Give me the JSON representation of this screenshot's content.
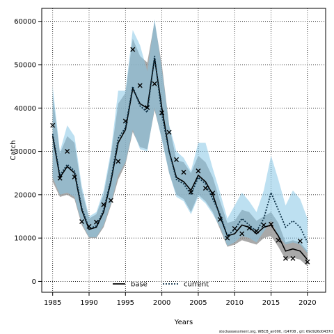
{
  "chart_data": {
    "type": "line",
    "xlabel": "Years",
    "ylabel": "Catch",
    "xlim": [
      1983.5,
      2022.5
    ],
    "ylim": [
      -2500,
      63000
    ],
    "xticks": [
      1985,
      1990,
      1995,
      2000,
      2005,
      2010,
      2015,
      2020
    ],
    "yticks": [
      0,
      10000,
      20000,
      30000,
      40000,
      50000,
      60000
    ],
    "grid": "dotted",
    "legend_position": "bottom-center",
    "footnote": "stockassessment.org, WBCB_an00lt, r14708 , git: 69d926d0437d",
    "colors": {
      "base": "#000000",
      "base_band": "#8c8c8c",
      "current": "#1a6e9a",
      "current_band": "#86c6e6",
      "points": "#000000"
    },
    "x": [
      1985,
      1986,
      1987,
      1988,
      1989,
      1990,
      1991,
      1992,
      1993,
      1994,
      1995,
      1996,
      1997,
      1998,
      1999,
      2000,
      2001,
      2002,
      2003,
      2004,
      2005,
      2006,
      2007,
      2008,
      2009,
      2010,
      2011,
      2012,
      2013,
      2014,
      2015,
      2016,
      2017,
      2018,
      2019,
      2020
    ],
    "series": [
      {
        "name": "base",
        "style": "solid",
        "values": [
          33500,
          24000,
          26500,
          25000,
          16500,
          12000,
          12500,
          16000,
          23000,
          32000,
          35000,
          44500,
          41000,
          40000,
          51500,
          40000,
          30000,
          24000,
          23000,
          21000,
          24500,
          23000,
          20000,
          15000,
          10500,
          11000,
          13000,
          12500,
          11000,
          12500,
          13000,
          10500,
          7000,
          7500,
          7000,
          5000
        ],
        "lower": [
          23000,
          19500,
          20000,
          19000,
          13000,
          10000,
          10000,
          12500,
          17500,
          23500,
          27000,
          34500,
          31000,
          30500,
          39500,
          33000,
          25000,
          20000,
          19000,
          16000,
          20000,
          18500,
          16000,
          12000,
          8000,
          8500,
          9500,
          9000,
          8500,
          10000,
          10500,
          8000,
          5000,
          5500,
          5000,
          3500
        ],
        "upper": [
          43000,
          29500,
          33500,
          32000,
          21000,
          14500,
          15500,
          20000,
          29000,
          41000,
          43500,
          56000,
          52000,
          50500,
          60000,
          50000,
          36000,
          28000,
          27500,
          25000,
          29000,
          27500,
          24000,
          18500,
          13500,
          14000,
          16500,
          16000,
          14000,
          15000,
          16000,
          13500,
          9000,
          9500,
          9000,
          7000
        ]
      },
      {
        "name": "current",
        "style": "dotted",
        "values": [
          34000,
          24500,
          27000,
          25500,
          17000,
          12200,
          12800,
          16500,
          23500,
          33000,
          35500,
          45000,
          40500,
          39000,
          52000,
          38500,
          30000,
          23500,
          22500,
          20000,
          24000,
          22500,
          19000,
          15500,
          10500,
          12000,
          14500,
          13000,
          11500,
          14500,
          20500,
          16500,
          12500,
          14000,
          12500,
          9000
        ],
        "lower": [
          24000,
          20000,
          20500,
          19500,
          13500,
          10200,
          10200,
          13000,
          18000,
          24500,
          27500,
          35000,
          30500,
          30000,
          40000,
          32500,
          25000,
          19500,
          18500,
          15500,
          19500,
          18000,
          15500,
          12500,
          8200,
          9000,
          10500,
          10000,
          9000,
          11500,
          14000,
          10500,
          8500,
          9000,
          8500,
          6500
        ],
        "upper": [
          45000,
          30000,
          36000,
          33500,
          22000,
          15000,
          16000,
          21000,
          30000,
          44000,
          44000,
          58000,
          54500,
          48500,
          60500,
          49000,
          36000,
          30000,
          28500,
          25500,
          32000,
          32000,
          26000,
          20500,
          14500,
          17500,
          20500,
          18500,
          16000,
          21000,
          29000,
          23500,
          17500,
          21000,
          19000,
          14500
        ]
      }
    ],
    "points": {
      "name": "observed",
      "marker": "x",
      "values": [
        36000,
        23800,
        30000,
        24100,
        13800,
        12700,
        13700,
        17700,
        18700,
        27700,
        37000,
        53500,
        45200,
        40100,
        45600,
        38900,
        34400,
        28100,
        25200,
        20600,
        25500,
        21500,
        20400,
        14300,
        10000,
        12200,
        11000,
        12300,
        11600,
        13000,
        13200,
        9500,
        5300,
        5300,
        9300,
        4500
      ]
    },
    "legend": [
      {
        "label": "base",
        "style": "solid"
      },
      {
        "label": "current",
        "style": "dotted"
      }
    ]
  }
}
